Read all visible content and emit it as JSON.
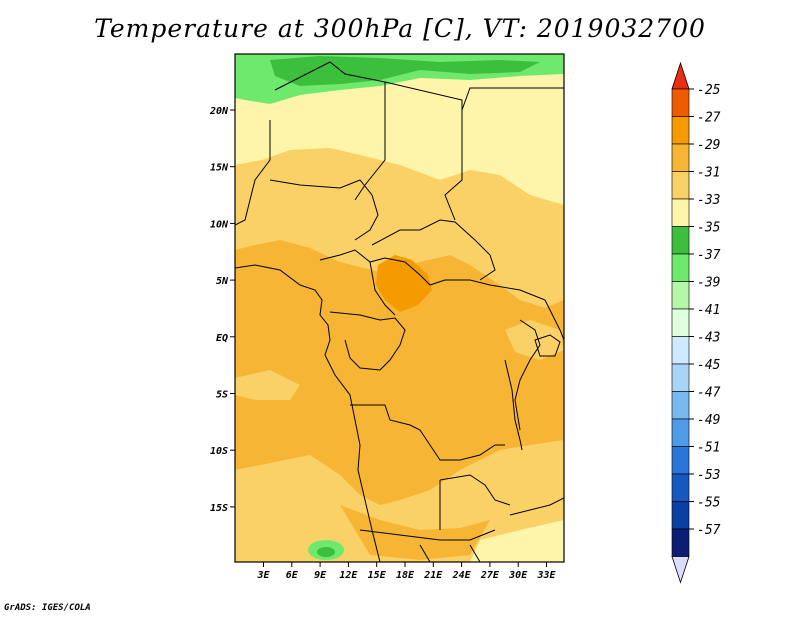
{
  "title": "Temperature at 300hPa [C], VT: 2019032700",
  "credit": "GrADS: IGES/COLA",
  "map": {
    "lon_ticks": [
      "3E",
      "6E",
      "9E",
      "12E",
      "15E",
      "18E",
      "21E",
      "24E",
      "27E",
      "30E",
      "33E"
    ],
    "lat_ticks": [
      "20N",
      "15N",
      "10N",
      "5N",
      "EQ",
      "5S",
      "10S",
      "15S"
    ]
  },
  "colorbar": {
    "labels": [
      "-25",
      "-27",
      "-29",
      "-31",
      "-33",
      "-35",
      "-37",
      "-39",
      "-41",
      "-43",
      "-45",
      "-47",
      "-49",
      "-51",
      "-53",
      "-55",
      "-57"
    ],
    "colors": [
      "#f05a00",
      "#f59b00",
      "#f7b536",
      "#fad166",
      "#fff5aa",
      "#3cbf3c",
      "#6ee96e",
      "#b4f7a8",
      "#e0ffe0",
      "#cfeaff",
      "#a8d4f7",
      "#7ab8f0",
      "#4e9be8",
      "#2a76d8",
      "#1657c0",
      "#0a3fa3",
      "#0b1d75"
    ],
    "top_arrow_color": "#e83010",
    "bottom_arrow_color": "#dcdcff"
  }
}
